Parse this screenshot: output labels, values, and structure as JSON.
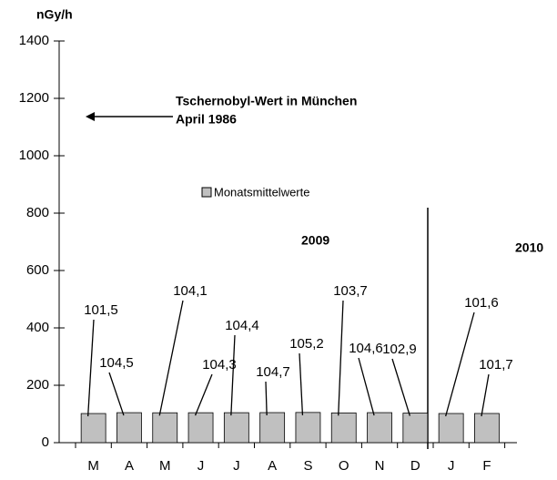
{
  "chart_data": {
    "type": "bar",
    "y_unit": "nGy/h",
    "categories": [
      "M",
      "A",
      "M",
      "J",
      "J",
      "A",
      "S",
      "O",
      "N",
      "D",
      "J",
      "F"
    ],
    "values": [
      101.5,
      104.5,
      104.1,
      104.3,
      104.4,
      104.7,
      105.2,
      103.7,
      104.6,
      102.9,
      101.6,
      101.7
    ],
    "value_labels": [
      "101,5",
      "104,5",
      "104,1",
      "104,3",
      "104,4",
      "104,7",
      "105,2",
      "103,7",
      "104,6",
      "102,9",
      "101,6",
      "101,7"
    ],
    "color": "#c0c0c0",
    "legend": "Monatsmittelwerte",
    "annotation": [
      "Tschernobyl-Wert in München",
      "April 1986"
    ],
    "years": [
      "2009",
      "2010"
    ],
    "ylim": [
      0,
      1400
    ],
    "yticks": [
      0,
      200,
      400,
      600,
      800,
      1000,
      1200,
      1400
    ]
  }
}
